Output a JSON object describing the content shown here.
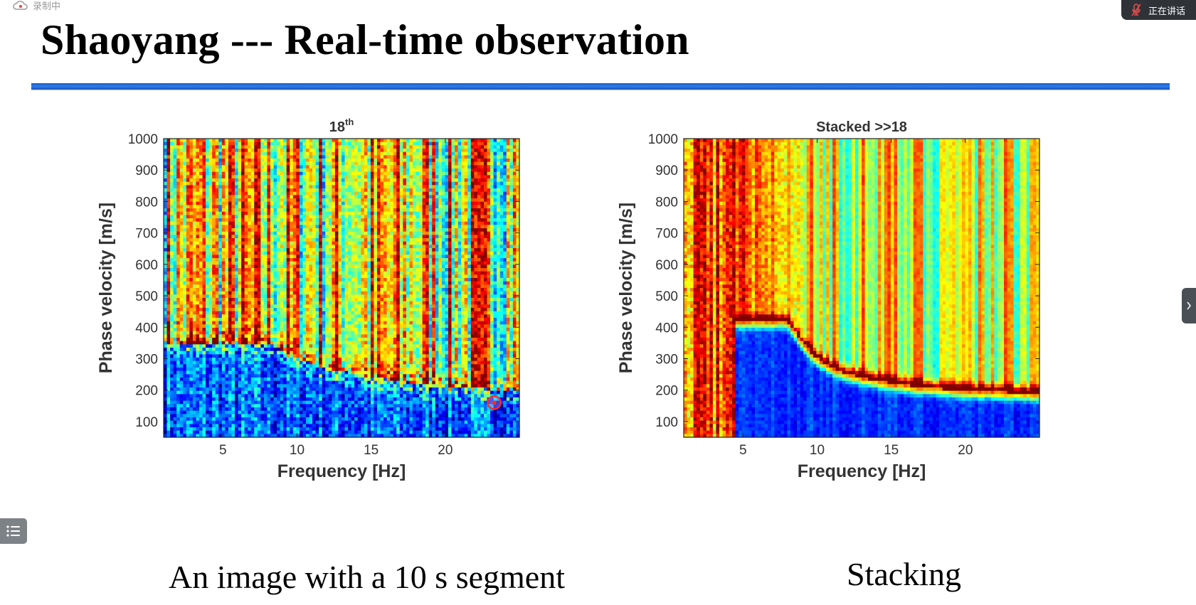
{
  "recording": {
    "label": "录制中",
    "icon": "cloud-record-icon"
  },
  "speaking_badge": {
    "label": "正在讲话",
    "icon": "microphone-muted-icon"
  },
  "slide": {
    "title": "Shaoyang --- Real-time observation",
    "accent_color": "#2a6fdc",
    "captions": {
      "left": "An image with a 10 s segment",
      "right": "Stacking"
    }
  },
  "side_tab": {
    "icon": "chevron-right-icon"
  },
  "list_button": {
    "icon": "list-icon"
  },
  "chart_data": [
    {
      "type": "heatmap",
      "title": "18",
      "title_superscript": "th",
      "xlabel": "Frequency  [Hz]",
      "ylabel": "Phase velocity  [m/s]",
      "xlim": [
        1,
        25
      ],
      "ylim": [
        50,
        1000
      ],
      "xticks": [
        5,
        10,
        15,
        20
      ],
      "yticks": [
        100,
        200,
        300,
        400,
        500,
        600,
        700,
        800,
        900,
        1000
      ],
      "colormap": "jet",
      "dispersion_curve": {
        "x": [
          8,
          10,
          12,
          14,
          16,
          18,
          20,
          22,
          24
        ],
        "y": [
          350,
          300,
          270,
          250,
          235,
          222,
          212,
          205,
          200
        ]
      }
    },
    {
      "type": "heatmap",
      "title": "Stacked >>18",
      "xlabel": "Frequency  [Hz]",
      "ylabel": "Phase velocity  [m/s]",
      "xlim": [
        1,
        25
      ],
      "ylim": [
        50,
        1000
      ],
      "xticks": [
        5,
        10,
        15,
        20
      ],
      "yticks": [
        100,
        200,
        300,
        400,
        500,
        600,
        700,
        800,
        900,
        1000
      ],
      "colormap": "jet",
      "dispersion_curve": {
        "x": [
          8,
          9,
          10,
          11,
          12,
          14,
          16,
          18,
          20,
          22,
          24,
          25
        ],
        "y": [
          420,
          350,
          300,
          270,
          250,
          230,
          215,
          205,
          198,
          194,
          190,
          188
        ]
      }
    }
  ]
}
